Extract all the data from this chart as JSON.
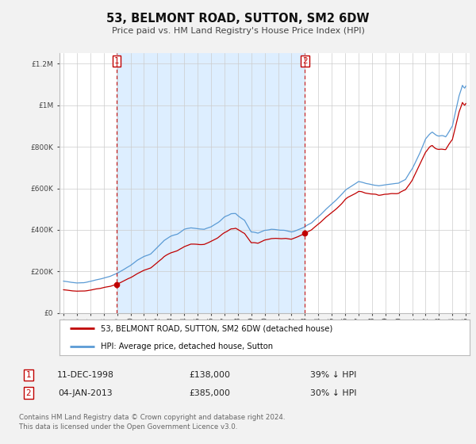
{
  "title": "53, BELMONT ROAD, SUTTON, SM2 6DW",
  "subtitle": "Price paid vs. HM Land Registry's House Price Index (HPI)",
  "legend_line1": "53, BELMONT ROAD, SUTTON, SM2 6DW (detached house)",
  "legend_line2": "HPI: Average price, detached house, Sutton",
  "sale1_date_str": "11-DEC-1998",
  "sale1_price": 138000,
  "sale1_hpi_pct": "39% ↓ HPI",
  "sale1_year": 1998.95,
  "sale2_date_str": "04-JAN-2013",
  "sale2_price": 385000,
  "sale2_hpi_pct": "30% ↓ HPI",
  "sale2_year": 2013.01,
  "footnote": "Contains HM Land Registry data © Crown copyright and database right 2024.\nThis data is licensed under the Open Government Licence v3.0.",
  "hpi_color": "#5b9bd5",
  "price_color": "#c00000",
  "vline_color": "#c00000",
  "shade_color": "#ddeeff",
  "ylim": [
    0,
    1250000
  ],
  "xlim_start": 1994.7,
  "xlim_end": 2025.3,
  "background_color": "#f2f2f2",
  "plot_bg_color": "#ffffff",
  "grid_color": "#cccccc"
}
